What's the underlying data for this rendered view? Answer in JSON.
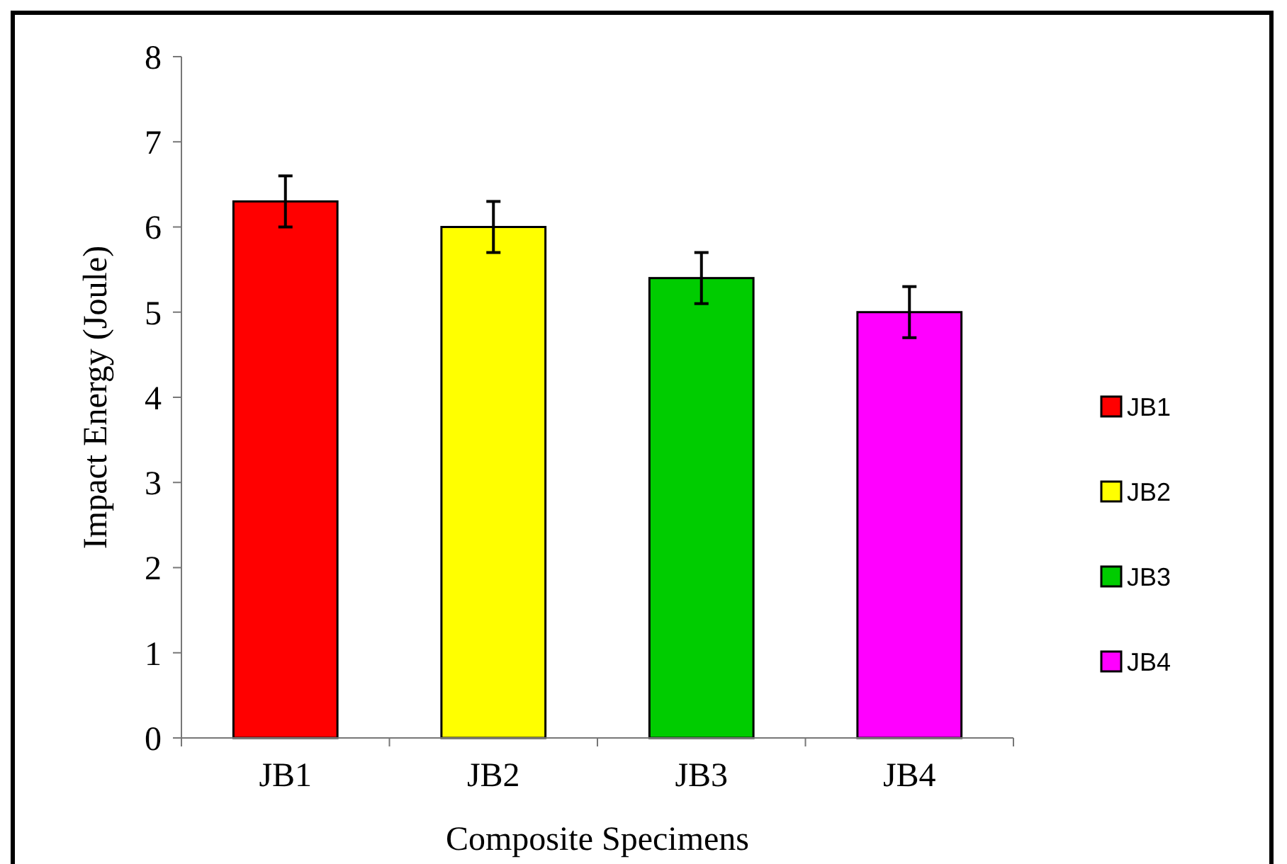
{
  "chart_data": {
    "type": "bar",
    "xlabel": "Composite Specimens",
    "ylabel": "Impact Energy (Joule)",
    "categories": [
      "JB1",
      "JB2",
      "JB3",
      "JB4"
    ],
    "series": [
      {
        "name": "JB1",
        "color": "#ff0000",
        "values": [
          6.3,
          null,
          null,
          null
        ],
        "errors": [
          0.3,
          null,
          null,
          null
        ]
      },
      {
        "name": "JB2",
        "color": "#ffff00",
        "values": [
          null,
          6.0,
          null,
          null
        ],
        "errors": [
          null,
          0.3,
          null,
          null
        ]
      },
      {
        "name": "JB3",
        "color": "#00cc00",
        "values": [
          null,
          null,
          5.4,
          null
        ],
        "errors": [
          null,
          null,
          0.3,
          null
        ]
      },
      {
        "name": "JB4",
        "color": "#ff00ff",
        "values": [
          null,
          null,
          null,
          5.0
        ],
        "errors": [
          null,
          null,
          null,
          0.3
        ]
      }
    ],
    "ylim": [
      0,
      8
    ],
    "yticks": [
      0,
      1,
      2,
      3,
      4,
      5,
      6,
      7,
      8
    ],
    "grid": false,
    "legend": "right"
  }
}
